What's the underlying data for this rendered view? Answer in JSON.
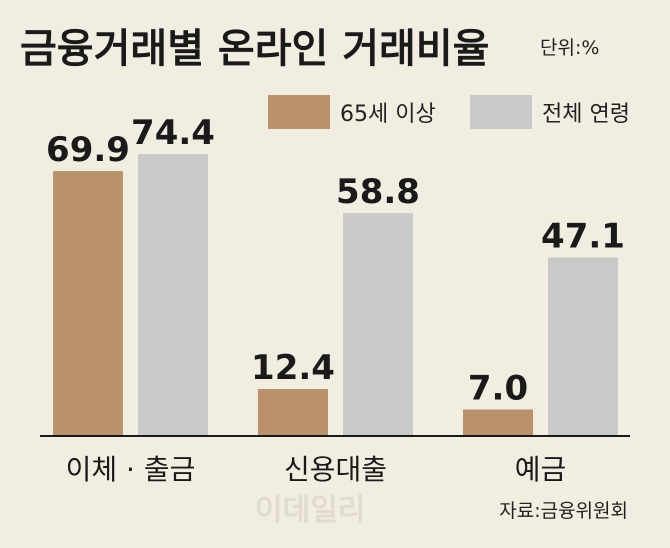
{
  "title": "금융거래별 온라인 거래비율",
  "unit": "단위:%",
  "source": "자료:금융위원회",
  "watermark": "이데일리",
  "chart_data": {
    "type": "bar",
    "title": "금융거래별 온라인 거래비율",
    "categories": [
      "이체 · 출금",
      "신용대출",
      "예금"
    ],
    "series": [
      {
        "name": "65세 이상",
        "values": [
          69.9,
          12.4,
          7.0
        ],
        "labels": [
          "69.9",
          "12.4",
          "7.0"
        ],
        "color": "#b9916b"
      },
      {
        "name": "전체 연령",
        "values": [
          74.4,
          58.8,
          47.1
        ],
        "labels": [
          "74.4",
          "58.8",
          "47.1"
        ],
        "color": "#c9c9c9"
      }
    ],
    "ylim": [
      0,
      100
    ],
    "legend_position": "top-right",
    "grid": false,
    "axis_color": "#1a1a1a"
  }
}
